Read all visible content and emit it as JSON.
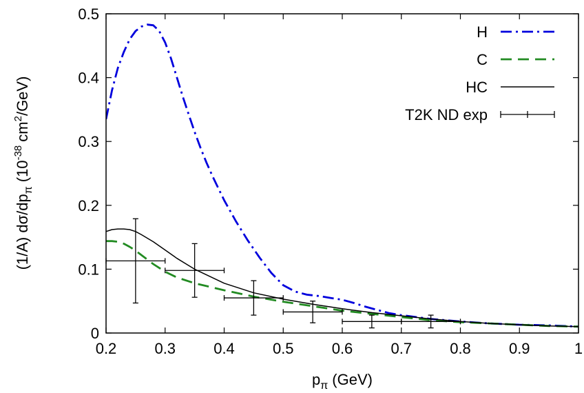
{
  "chart_data": {
    "type": "line",
    "xlabel_main": "p",
    "xlabel_sub": "π",
    "xlabel_unit": "(GeV)",
    "ylabel_prefix": "(1/A) dσ/dp",
    "ylabel_sub": "π",
    "ylabel_mid": "(10",
    "ylabel_exp": "-38",
    "ylabel_mid2": "cm",
    "ylabel_exp2": "2",
    "ylabel_unit": "/GeV)",
    "xlim": [
      0.2,
      1.0
    ],
    "ylim": [
      0,
      0.5
    ],
    "x_ticks": [
      0.2,
      0.3,
      0.4,
      0.5,
      0.6,
      0.7,
      0.8,
      0.9,
      1.0
    ],
    "x_tick_labels": [
      "0.2",
      "0.3",
      "0.4",
      "0.5",
      "0.6",
      "0.7",
      "0.8",
      "0.9",
      "1"
    ],
    "y_ticks": [
      0,
      0.1,
      0.2,
      0.3,
      0.4,
      0.5
    ],
    "y_tick_labels": [
      "0",
      "0.1",
      "0.2",
      "0.3",
      "0.4",
      "0.5"
    ],
    "grid": false,
    "legend_position": "top-right",
    "series": [
      {
        "name": "H",
        "style": "dash-dot",
        "color": "#0000dd",
        "x": [
          0.2,
          0.21,
          0.22,
          0.23,
          0.24,
          0.25,
          0.26,
          0.27,
          0.28,
          0.29,
          0.3,
          0.31,
          0.32,
          0.33,
          0.34,
          0.35,
          0.36,
          0.37,
          0.38,
          0.39,
          0.4,
          0.42,
          0.44,
          0.46,
          0.48,
          0.5,
          0.52,
          0.54,
          0.56,
          0.58,
          0.6,
          0.62,
          0.64,
          0.66,
          0.68,
          0.7,
          0.75,
          0.8,
          0.85,
          0.9,
          0.95,
          1.0
        ],
        "y": [
          0.335,
          0.38,
          0.415,
          0.44,
          0.46,
          0.473,
          0.48,
          0.483,
          0.482,
          0.473,
          0.455,
          0.43,
          0.4,
          0.37,
          0.342,
          0.315,
          0.29,
          0.267,
          0.246,
          0.227,
          0.208,
          0.175,
          0.145,
          0.118,
          0.094,
          0.075,
          0.065,
          0.06,
          0.058,
          0.055,
          0.052,
          0.047,
          0.041,
          0.036,
          0.031,
          0.028,
          0.022,
          0.018,
          0.015,
          0.013,
          0.012,
          0.01
        ]
      },
      {
        "name": "C",
        "style": "dashed",
        "color": "#228b22",
        "x": [
          0.2,
          0.21,
          0.22,
          0.23,
          0.24,
          0.25,
          0.26,
          0.28,
          0.3,
          0.32,
          0.35,
          0.4,
          0.45,
          0.5,
          0.55,
          0.6,
          0.65,
          0.7,
          0.75,
          0.8,
          0.85,
          0.9,
          0.95,
          1.0
        ],
        "y": [
          0.144,
          0.144,
          0.143,
          0.14,
          0.135,
          0.129,
          0.122,
          0.108,
          0.096,
          0.087,
          0.078,
          0.067,
          0.057,
          0.049,
          0.042,
          0.035,
          0.03,
          0.025,
          0.02,
          0.017,
          0.015,
          0.013,
          0.011,
          0.01
        ]
      },
      {
        "name": "HC",
        "style": "solid",
        "color": "#000000",
        "x": [
          0.2,
          0.21,
          0.22,
          0.23,
          0.24,
          0.25,
          0.26,
          0.28,
          0.3,
          0.32,
          0.35,
          0.4,
          0.45,
          0.5,
          0.55,
          0.6,
          0.65,
          0.7,
          0.75,
          0.8,
          0.85,
          0.9,
          0.95,
          1.0
        ],
        "y": [
          0.159,
          0.162,
          0.163,
          0.163,
          0.162,
          0.159,
          0.154,
          0.143,
          0.13,
          0.117,
          0.1,
          0.078,
          0.063,
          0.053,
          0.045,
          0.038,
          0.032,
          0.027,
          0.022,
          0.018,
          0.015,
          0.013,
          0.011,
          0.01
        ]
      },
      {
        "name": "T2K ND exp",
        "style": "errorbars",
        "color": "#000000",
        "points": [
          {
            "x": 0.25,
            "y": 0.113,
            "xerr": 0.05,
            "yerr": 0.066
          },
          {
            "x": 0.35,
            "y": 0.098,
            "xerr": 0.05,
            "yerr": 0.042
          },
          {
            "x": 0.45,
            "y": 0.055,
            "xerr": 0.05,
            "yerr": 0.027
          },
          {
            "x": 0.55,
            "y": 0.033,
            "xerr": 0.05,
            "yerr": 0.017
          },
          {
            "x": 0.65,
            "y": 0.018,
            "xerr": 0.05,
            "yerr": 0.01
          },
          {
            "x": 0.75,
            "y": 0.018,
            "xerr": 0.05,
            "yerr": 0.01
          }
        ]
      }
    ]
  }
}
